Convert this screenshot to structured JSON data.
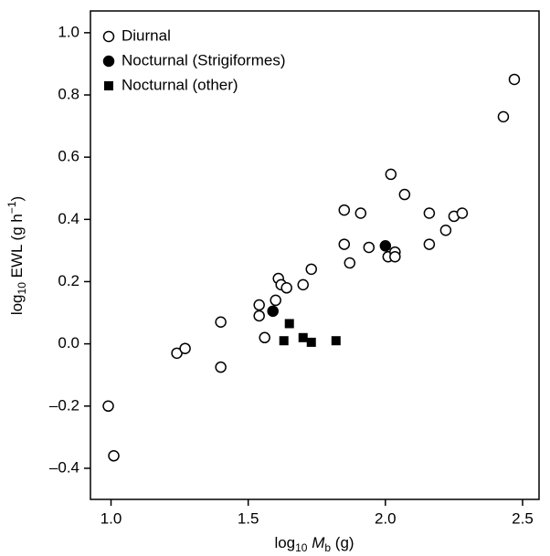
{
  "chart_data": {
    "type": "scatter",
    "xlabel": [
      "log",
      "10",
      " M",
      "b",
      " (g)"
    ],
    "ylabel": [
      "log",
      "10",
      " EWL (g h",
      "−1",
      ")"
    ],
    "xlim": [
      0.925,
      2.56
    ],
    "ylim": [
      -0.5,
      1.07
    ],
    "xticks": [
      {
        "value": 1,
        "label": "1.0"
      },
      {
        "value": 1.5,
        "label": "1.5"
      },
      {
        "value": 2,
        "label": "2.0"
      },
      {
        "value": 2.5,
        "label": "2.5"
      }
    ],
    "yticks": [
      {
        "value": -0.4,
        "label": "–0.4"
      },
      {
        "value": -0.2,
        "label": "–0.2"
      },
      {
        "value": 0,
        "label": "0.0"
      },
      {
        "value": 0.2,
        "label": "0.2"
      },
      {
        "value": 0.4,
        "label": "0.4"
      },
      {
        "value": 0.6,
        "label": "0.6"
      },
      {
        "value": 0.8,
        "label": "0.8"
      },
      {
        "value": 1,
        "label": "1.0"
      }
    ],
    "legend": "upper left",
    "series": [
      {
        "name": "Diurnal",
        "color": "#000000",
        "marker": "open-circle",
        "x": [
          0.99,
          1.01,
          1.24,
          1.27,
          1.4,
          1.4,
          1.54,
          1.54,
          1.56,
          1.6,
          1.61,
          1.62,
          1.64,
          1.7,
          1.73,
          1.85,
          1.85,
          1.87,
          1.91,
          1.94,
          2.01,
          2.02,
          2.035,
          2.035,
          2.07,
          2.16,
          2.16,
          2.22,
          2.25,
          2.28,
          2.43,
          2.47
        ],
        "values": [
          -0.2,
          -0.36,
          -0.03,
          -0.015,
          -0.075,
          0.07,
          0.09,
          0.125,
          0.02,
          0.14,
          0.21,
          0.19,
          0.18,
          0.19,
          0.24,
          0.43,
          0.32,
          0.26,
          0.42,
          0.31,
          0.28,
          0.545,
          0.295,
          0.28,
          0.48,
          0.42,
          0.32,
          0.365,
          0.41,
          0.42,
          0.73,
          0.85
        ]
      },
      {
        "name": "Nocturnal (Strigiformes)",
        "color": "#000000",
        "marker": "filled-circle",
        "x": [
          1.59,
          2.0
        ],
        "values": [
          0.105,
          0.315
        ]
      },
      {
        "name": "Nocturnal (other)",
        "color": "#000000",
        "marker": "filled-square",
        "x": [
          1.63,
          1.65,
          1.7,
          1.73,
          1.82
        ],
        "values": [
          0.01,
          0.065,
          0.02,
          0.005,
          0.01
        ]
      }
    ]
  }
}
